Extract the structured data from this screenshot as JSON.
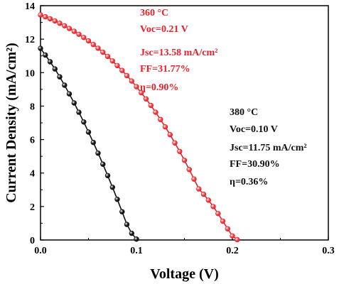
{
  "chart_data": {
    "type": "scatter",
    "title": "",
    "xlabel": "Voltage (V)",
    "ylabel": "Current Density (mA/cm²)",
    "xlim": [
      0.0,
      0.3
    ],
    "ylim": [
      0,
      14
    ],
    "xticks": [
      "0.0",
      "0.1",
      "0.2",
      "0.3"
    ],
    "yticks": [
      "0",
      "2",
      "4",
      "6",
      "8",
      "10",
      "12",
      "14"
    ],
    "grid": false,
    "series": [
      {
        "color": "#e8202a",
        "marker_fill": "#f04a4a",
        "x": [
          0.0,
          0.005,
          0.01,
          0.015,
          0.02,
          0.025,
          0.03,
          0.035,
          0.04,
          0.045,
          0.05,
          0.055,
          0.06,
          0.065,
          0.07,
          0.075,
          0.08,
          0.085,
          0.09,
          0.095,
          0.1,
          0.105,
          0.11,
          0.115,
          0.12,
          0.125,
          0.13,
          0.135,
          0.14,
          0.145,
          0.15,
          0.155,
          0.16,
          0.165,
          0.17,
          0.175,
          0.18,
          0.185,
          0.19,
          0.195,
          0.2,
          0.205
        ],
        "y": [
          13.45,
          13.34,
          13.22,
          13.09,
          12.95,
          12.8,
          12.64,
          12.47,
          12.29,
          12.1,
          11.9,
          11.68,
          11.46,
          11.22,
          10.97,
          10.7,
          10.42,
          10.13,
          9.82,
          9.5,
          9.16,
          8.8,
          8.43,
          8.04,
          7.63,
          7.2,
          6.76,
          6.29,
          5.8,
          5.29,
          4.76,
          4.21,
          3.64,
          3.05,
          2.73,
          2.38,
          2.0,
          1.58,
          1.13,
          0.67,
          0.24,
          0.02
        ]
      },
      {
        "color": "#111111",
        "marker_fill": "#1a1a1a",
        "x": [
          0.0,
          0.005,
          0.01,
          0.015,
          0.02,
          0.025,
          0.03,
          0.035,
          0.04,
          0.045,
          0.05,
          0.055,
          0.06,
          0.065,
          0.07,
          0.075,
          0.08,
          0.085,
          0.09,
          0.095,
          0.1
        ],
        "y": [
          11.45,
          11.05,
          10.65,
          10.22,
          9.75,
          9.25,
          8.73,
          8.19,
          7.63,
          7.05,
          6.45,
          5.83,
          5.19,
          4.53,
          3.85,
          3.15,
          2.43,
          1.69,
          0.93,
          0.4,
          0.05
        ]
      }
    ],
    "annotations": [
      {
        "color": "#e8202a",
        "lines": [
          "360 °C",
          "Voc=0.21 V",
          "Jsc=13.58 mA/cm²",
          "FF=31.77%",
          "η=0.90%"
        ]
      },
      {
        "color": "#111111",
        "lines": [
          "380 °C",
          "Voc=0.10 V",
          "Jsc=11.75 mA/cm²",
          "FF=30.90%",
          "η=0.36%"
        ]
      }
    ]
  }
}
